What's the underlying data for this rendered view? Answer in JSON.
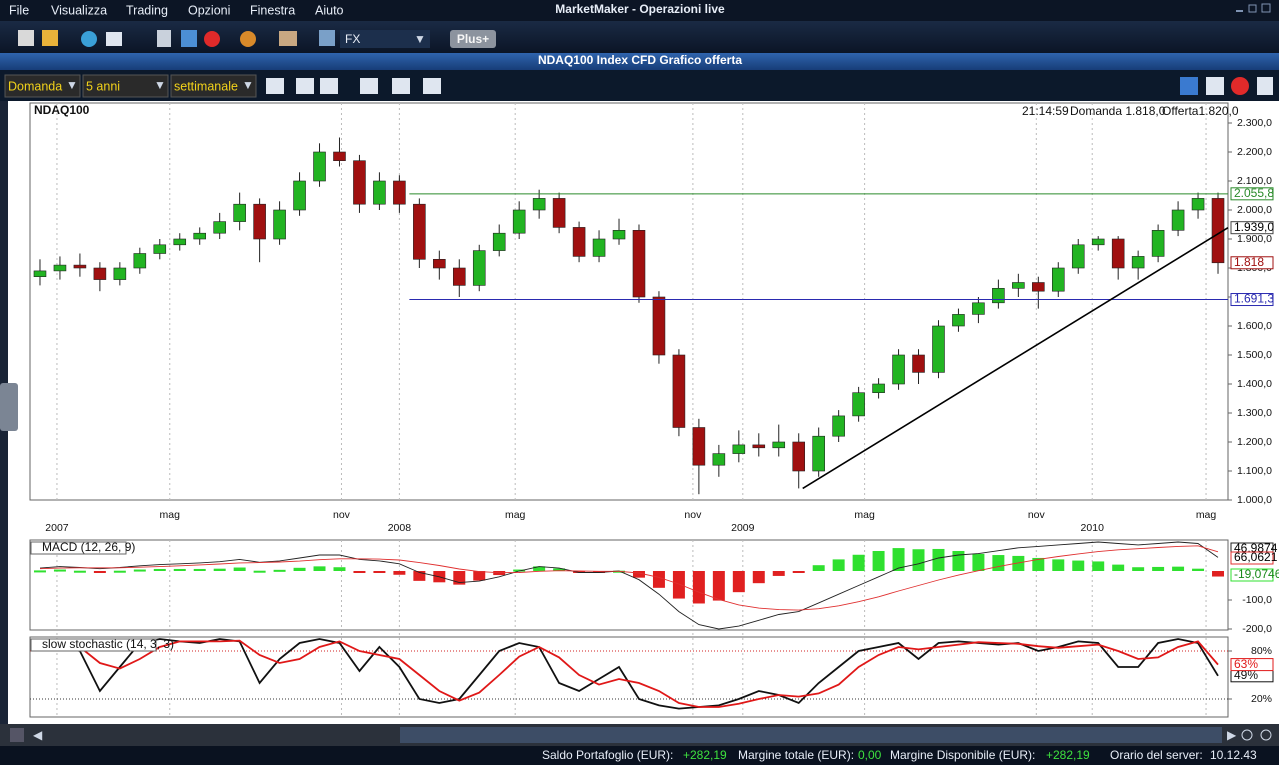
{
  "app": {
    "title": "MarketMaker - Operazioni live",
    "menu": [
      "File",
      "Visualizza",
      "Trading",
      "Opzioni",
      "Finestra",
      "Aiuto"
    ],
    "toolbar": {
      "instrument": "FX",
      "plus": "Plus+"
    }
  },
  "window": {
    "title": "NDAQ100 Index CFD Grafico offerta",
    "controls": [
      "Domanda",
      "5 anni",
      "settimanale"
    ]
  },
  "chart_header": {
    "symbol": "NDAQ100",
    "time": "21:14:59",
    "bid": "Domanda 1.818,0",
    "ask": "Offerta1.820,0"
  },
  "chart_data": [
    {
      "type": "candlestick",
      "open": [
        1770,
        1790,
        1810,
        1800,
        1760,
        1800,
        1850,
        1880,
        1900,
        1920,
        1960,
        2020,
        1900,
        2000,
        2100,
        2200,
        2170,
        2020,
        2100,
        2020,
        1830,
        1800,
        1740,
        1860,
        1920,
        2000,
        2040,
        1940,
        1840,
        1900,
        1930,
        1700,
        1500,
        1250,
        1120,
        1160,
        1190,
        1180,
        1200,
        1100,
        1220,
        1290,
        1370,
        1400,
        1500,
        1440,
        1600,
        1640,
        1680,
        1730,
        1750,
        1720,
        1800,
        1880,
        1900,
        1800,
        1840,
        1930,
        2000,
        2040
      ],
      "high": [
        1830,
        1840,
        1850,
        1820,
        1820,
        1870,
        1900,
        1920,
        1940,
        1990,
        2060,
        2040,
        2030,
        2130,
        2230,
        2250,
        2190,
        2130,
        2120,
        2040,
        1860,
        1830,
        1880,
        1950,
        2030,
        2070,
        2060,
        1960,
        1930,
        1970,
        1950,
        1720,
        1520,
        1280,
        1190,
        1240,
        1230,
        1260,
        1230,
        1250,
        1310,
        1390,
        1420,
        1520,
        1520,
        1620,
        1660,
        1700,
        1760,
        1780,
        1770,
        1820,
        1900,
        1910,
        1910,
        1860,
        1950,
        2030,
        2060,
        2060
      ],
      "low": [
        1740,
        1760,
        1770,
        1720,
        1740,
        1780,
        1830,
        1860,
        1880,
        1900,
        1930,
        1820,
        1880,
        1980,
        2080,
        2150,
        1990,
        2000,
        1990,
        1800,
        1760,
        1700,
        1720,
        1840,
        1900,
        1970,
        1920,
        1820,
        1820,
        1880,
        1680,
        1470,
        1220,
        1020,
        1080,
        1130,
        1150,
        1150,
        1040,
        1080,
        1200,
        1270,
        1350,
        1380,
        1400,
        1420,
        1580,
        1610,
        1660,
        1700,
        1660,
        1700,
        1780,
        1860,
        1760,
        1760,
        1820,
        1910,
        1970,
        1780
      ],
      "close": [
        1790,
        1810,
        1800,
        1760,
        1800,
        1850,
        1880,
        1900,
        1920,
        1960,
        2020,
        1900,
        2000,
        2100,
        2200,
        2170,
        2020,
        2100,
        2020,
        1830,
        1800,
        1740,
        1860,
        1920,
        2000,
        2040,
        1940,
        1840,
        1900,
        1930,
        1700,
        1500,
        1250,
        1120,
        1160,
        1190,
        1180,
        1200,
        1100,
        1220,
        1290,
        1370,
        1400,
        1500,
        1440,
        1600,
        1640,
        1680,
        1730,
        1750,
        1720,
        1800,
        1880,
        1900,
        1800,
        1840,
        1930,
        2000,
        2040,
        1818
      ],
      "last_label": "1.818",
      "up_color": "#22b422",
      "down_color": "#a01010",
      "xlim": [
        0,
        60
      ],
      "ylim": [
        1000,
        2300
      ],
      "yticks": [
        {
          "value": 1000,
          "label": "1.000,0"
        },
        {
          "value": 1100,
          "label": "1.100,0"
        },
        {
          "value": 1200,
          "label": "1.200,0"
        },
        {
          "value": 1300,
          "label": "1.300,0"
        },
        {
          "value": 1400,
          "label": "1.400,0"
        },
        {
          "value": 1500,
          "label": "1.500,0"
        },
        {
          "value": 1600,
          "label": "1.600,0"
        },
        {
          "value": 1700,
          "label": "1.700,0"
        },
        {
          "value": 1800,
          "label": "1.800,0"
        },
        {
          "value": 1900,
          "label": "1.900,0"
        },
        {
          "value": 2000,
          "label": "2.000,0"
        },
        {
          "value": 2100,
          "label": "2.100,0"
        },
        {
          "value": 2200,
          "label": "2.200,0"
        },
        {
          "value": 2300,
          "label": "2.300,0"
        }
      ],
      "xticks": [
        {
          "value": 7.0,
          "label": "mag"
        },
        {
          "value": 15.6,
          "label": "nov"
        },
        {
          "value": 24.3,
          "label": "mag"
        },
        {
          "value": 33.2,
          "label": "nov"
        },
        {
          "value": 41.8,
          "label": "mag"
        },
        {
          "value": 50.4,
          "label": "nov"
        },
        {
          "value": 58.9,
          "label": "mag"
        }
      ],
      "year_ticks": [
        {
          "value": 1.35,
          "label": "2007"
        },
        {
          "value": 18.5,
          "label": "2008"
        },
        {
          "value": 35.7,
          "label": "2009"
        },
        {
          "value": 53.2,
          "label": "2010"
        }
      ],
      "grid": true,
      "levels": [
        {
          "value": 2055.8,
          "label": "2.055,8",
          "color": "#2a8a2a",
          "x_start": 19
        },
        {
          "value": 1691.3,
          "label": "1.691,3",
          "color": "#2a2ab0",
          "x_start": 19
        }
      ],
      "trendline": {
        "x": [
          38.7,
          60
        ],
        "y": [
          1040,
          1939
        ],
        "label": "1.939,0",
        "color": "#000000"
      }
    },
    {
      "type": "macd",
      "title": "MACD (12, 26, 9)",
      "xlim": [
        0,
        60
      ],
      "ylim": [
        -200,
        100
      ],
      "yticks": [
        {
          "value": -100,
          "label": "-100,0"
        },
        {
          "value": -200,
          "label": "-200,0"
        }
      ],
      "series": [
        {
          "color": "#222222",
          "last_label": "46,9874",
          "values": [
            10,
            15,
            12,
            8,
            12,
            18,
            22,
            25,
            28,
            32,
            40,
            30,
            35,
            45,
            55,
            55,
            40,
            35,
            25,
            -5,
            -20,
            -40,
            -35,
            -20,
            0,
            15,
            10,
            -5,
            -5,
            0,
            -30,
            -80,
            -140,
            -185,
            -200,
            -190,
            -170,
            -150,
            -140,
            -110,
            -80,
            -50,
            -20,
            10,
            25,
            45,
            55,
            60,
            70,
            80,
            85,
            90,
            95,
            100,
            95,
            90,
            95,
            100,
            95,
            46.9874
          ]
        },
        {
          "color": "#e03030",
          "last_label": "66,0621",
          "values": [
            8,
            10,
            11,
            11,
            11,
            13,
            15,
            18,
            21,
            24,
            28,
            29,
            31,
            34,
            39,
            42,
            42,
            41,
            38,
            29,
            19,
            7,
            -2,
            -6,
            -5,
            -1,
            1,
            0,
            -1,
            -1,
            -7,
            -22,
            -45,
            -73,
            -98,
            -117,
            -128,
            -133,
            -135,
            -130,
            -120,
            -106,
            -89,
            -69,
            -50,
            -31,
            -14,
            1,
            15,
            28,
            40,
            50,
            59,
            67,
            73,
            77,
            81,
            85,
            87,
            66.0621
          ]
        }
      ],
      "histogram": {
        "up_color": "#2fe02f",
        "down_color": "#e02020",
        "last_label": "-19,0746",
        "values": [
          2,
          5,
          1,
          -3,
          1,
          5,
          7,
          7,
          7,
          8,
          12,
          1,
          4,
          11,
          16,
          13,
          -2,
          -6,
          -13,
          -34,
          -39,
          -47,
          -33,
          -14,
          5,
          16,
          9,
          -5,
          -4,
          1,
          -23,
          -58,
          -95,
          -112,
          -102,
          -73,
          -42,
          -17,
          -5,
          20,
          40,
          56,
          69,
          79,
          75,
          76,
          69,
          59,
          55,
          52,
          45,
          40,
          36,
          33,
          22,
          13,
          14,
          15,
          8,
          -19.0746
        ]
      }
    },
    {
      "type": "stochastic",
      "title": "slow stochastic (14, 3, 3)",
      "xlim": [
        0,
        60
      ],
      "ylim": [
        0,
        100
      ],
      "yticks": [
        {
          "value": 80,
          "label": "80%"
        },
        {
          "value": 20,
          "label": "20%"
        }
      ],
      "series": [
        {
          "color": "#111111",
          "last_label": "49%",
          "values": [
            90,
            85,
            80,
            30,
            60,
            90,
            95,
            92,
            90,
            95,
            92,
            40,
            70,
            90,
            95,
            90,
            55,
            85,
            60,
            20,
            15,
            20,
            50,
            80,
            90,
            85,
            40,
            30,
            45,
            60,
            20,
            12,
            8,
            10,
            12,
            20,
            30,
            25,
            15,
            40,
            60,
            80,
            85,
            90,
            70,
            90,
            92,
            90,
            88,
            90,
            80,
            85,
            92,
            90,
            60,
            60,
            90,
            95,
            90,
            49
          ]
        },
        {
          "color": "#e01818",
          "last_label": "63%",
          "values": [
            88,
            87,
            85,
            65,
            58,
            70,
            85,
            92,
            92,
            92,
            93,
            75,
            65,
            70,
            85,
            92,
            80,
            75,
            70,
            50,
            30,
            18,
            28,
            50,
            73,
            85,
            72,
            50,
            38,
            45,
            40,
            30,
            15,
            10,
            10,
            14,
            20,
            25,
            23,
            27,
            38,
            60,
            75,
            85,
            82,
            85,
            88,
            91,
            90,
            89,
            86,
            84,
            86,
            88,
            80,
            70,
            72,
            85,
            92,
            63
          ]
        }
      ]
    }
  ],
  "status": {
    "balance_label": "Saldo Portafoglio (EUR):",
    "balance": "+282,19",
    "total_margin_label": "Margine totale (EUR):",
    "total_margin": "0,00",
    "free_margin_label": "Margine Disponibile (EUR):",
    "free_margin": "+282,19",
    "server_time_label": "Orario del server:",
    "server_time": "10.12.43"
  }
}
